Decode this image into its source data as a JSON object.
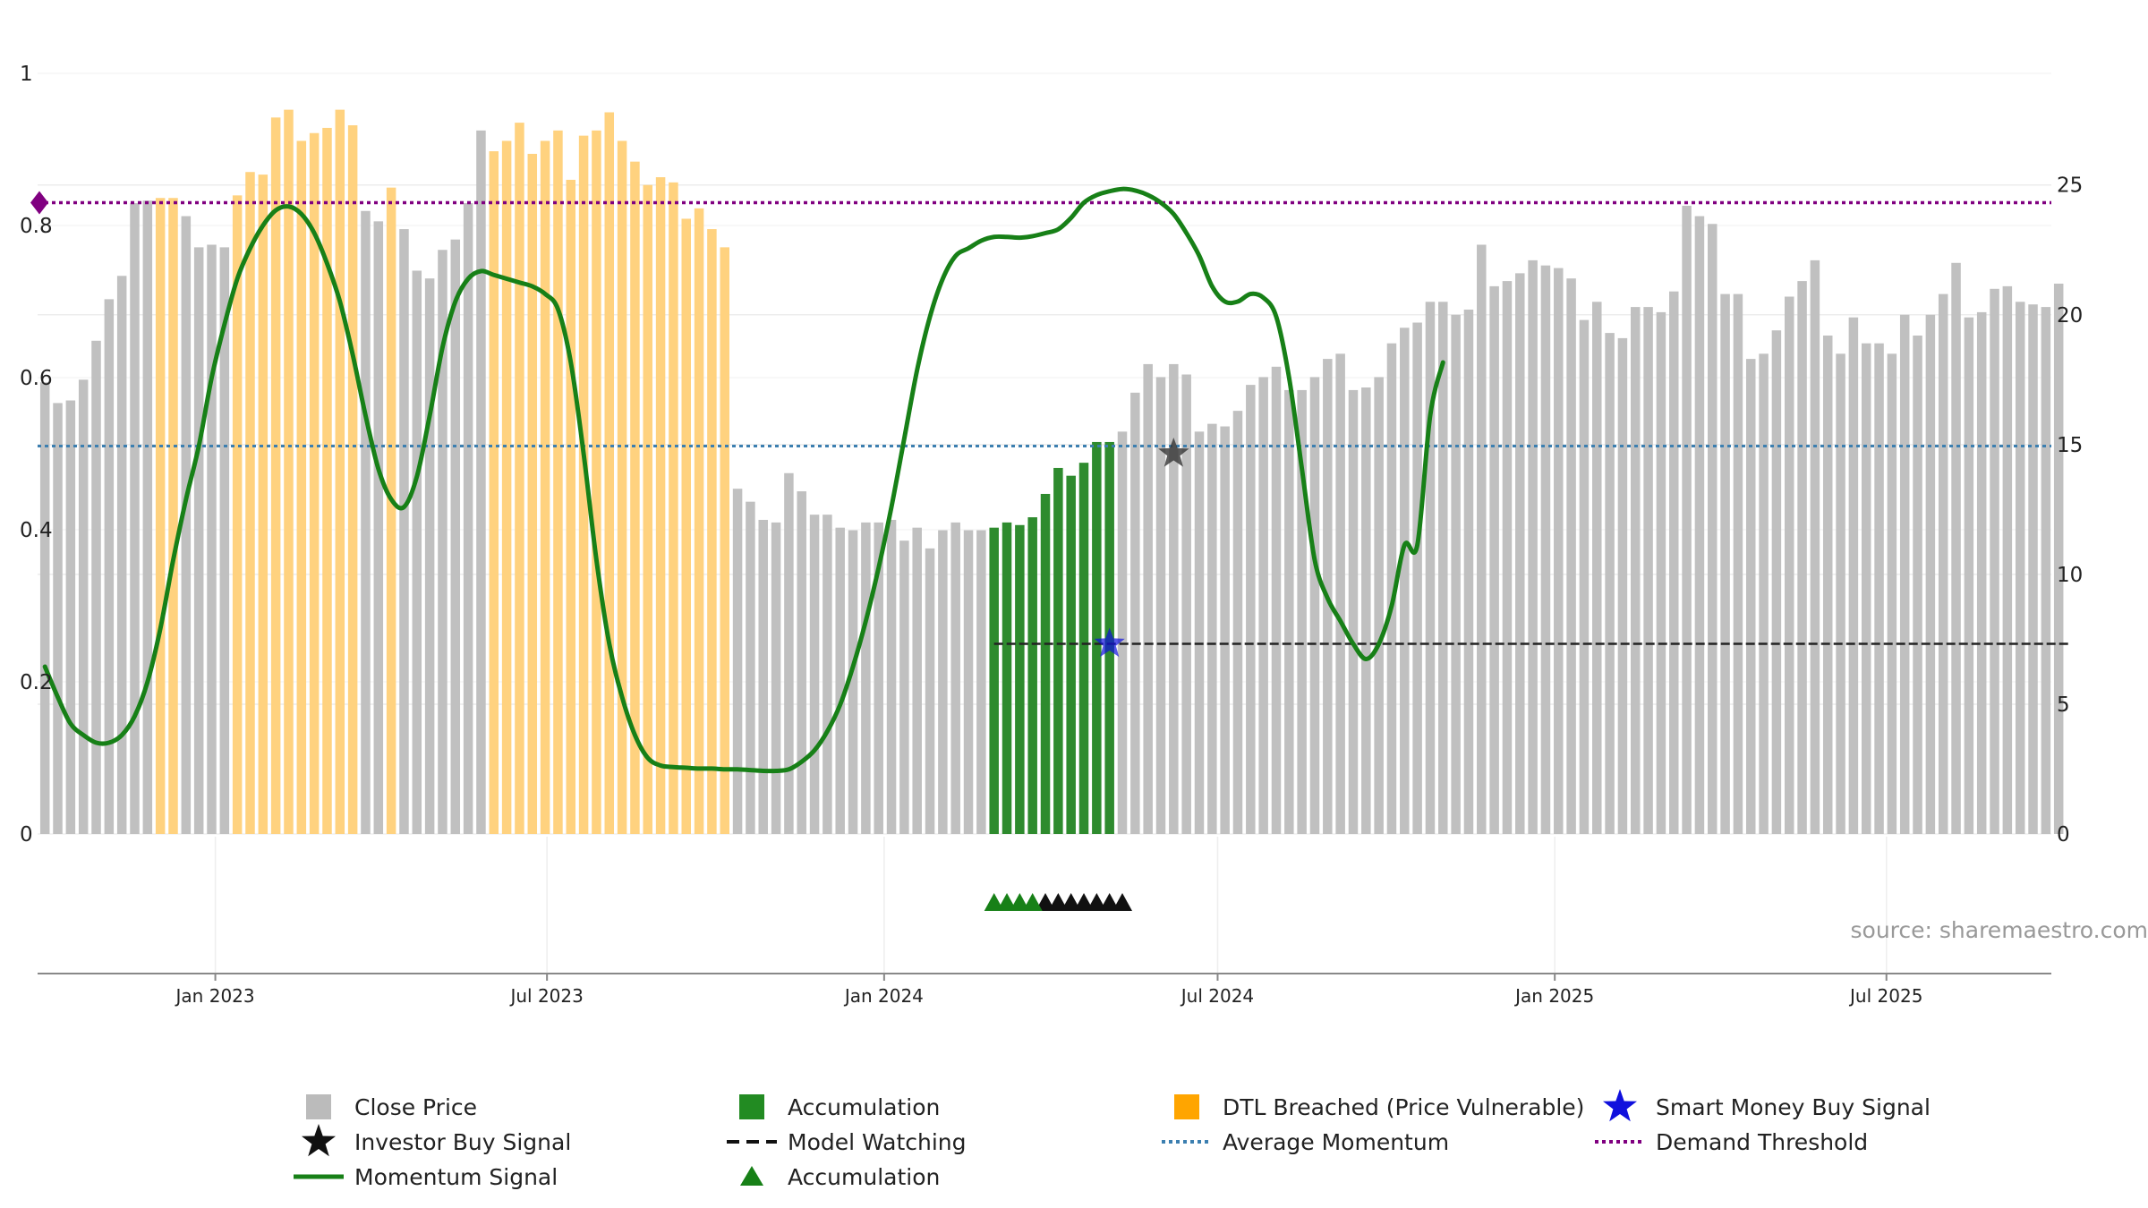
{
  "chart_data": {
    "type": "bar",
    "source": "source: sharemaestro.com",
    "left_axis": {
      "ylim": [
        0,
        1
      ],
      "ticks": [
        0,
        0.2,
        0.4,
        0.6,
        0.8,
        1
      ],
      "tick_labels": [
        "0",
        "0.2",
        "0.4",
        "0.6",
        "0.8",
        "1"
      ]
    },
    "right_axis": {
      "ylim": [
        0,
        29.3
      ],
      "ticks": [
        0,
        5,
        10,
        15,
        20,
        25
      ],
      "tick_labels": [
        "0",
        "5",
        "10",
        "15",
        "20",
        "25"
      ]
    },
    "x_axis": {
      "start": "2022-09-26",
      "end": "2025-09-29",
      "ticks": [
        "2023-01-01",
        "2023-07-01",
        "2024-01-01",
        "2024-07-01",
        "2025-01-01",
        "2025-07-01"
      ],
      "tick_labels": [
        "Jan 2023",
        "Jul 2023",
        "Jan 2024",
        "Jul 2024",
        "Jan 2025",
        "Jul 2025"
      ]
    },
    "close_price": {
      "start": "2022-09-30",
      "interval_days": 7,
      "values": [
        17.4,
        16.6,
        16.7,
        17.5,
        19.0,
        20.6,
        21.5,
        24.3,
        24.4,
        24.5,
        24.5,
        23.8,
        22.6,
        22.7,
        22.6,
        24.6,
        25.5,
        25.4,
        27.6,
        27.9,
        26.7,
        27.0,
        27.2,
        27.9,
        27.3,
        24.0,
        23.6,
        24.9,
        23.3,
        21.7,
        21.4,
        22.5,
        22.9,
        24.3,
        27.1,
        26.3,
        26.7,
        27.4,
        26.2,
        26.7,
        27.1,
        25.2,
        26.9,
        27.1,
        27.8,
        26.7,
        25.9,
        25.0,
        25.3,
        25.1,
        23.7,
        24.1,
        23.3,
        22.6,
        13.3,
        12.8,
        12.1,
        12.0,
        13.9,
        13.2,
        12.3,
        12.3,
        11.8,
        11.7,
        12.0,
        12.0,
        12.1,
        11.3,
        11.8,
        11.0,
        11.7,
        12.0,
        11.7,
        11.7,
        11.8,
        12.0,
        11.9,
        12.2,
        13.1,
        14.1,
        13.8,
        14.3,
        15.1,
        15.1,
        15.5,
        17.0,
        18.1,
        17.6,
        18.1,
        17.7,
        15.5,
        15.8,
        15.7,
        16.3,
        17.3,
        17.6,
        18.0,
        17.1,
        17.1,
        17.6,
        18.3,
        18.5,
        17.1,
        17.2,
        17.6,
        18.9,
        19.5,
        19.7,
        20.5,
        20.5,
        20.0,
        20.2,
        22.7,
        21.1,
        21.3,
        21.6,
        22.1,
        21.9,
        21.8,
        21.4,
        19.8,
        20.5,
        19.3,
        19.1,
        20.3,
        20.3,
        20.1,
        20.9,
        24.2,
        23.8,
        23.5,
        20.8,
        20.8,
        18.3,
        18.5,
        19.4,
        20.7,
        21.3,
        22.1,
        19.2,
        18.5,
        19.9,
        18.9,
        18.9,
        18.5,
        20.0,
        19.2,
        20.0,
        20.8,
        22.0,
        19.9,
        20.1,
        21.0,
        21.1,
        20.5,
        20.4,
        20.3,
        21.2
      ],
      "color": "#c0c0c0"
    },
    "dtl_breached_ranges": [
      [
        9,
        10
      ],
      [
        15,
        24
      ],
      [
        27,
        27
      ],
      [
        35,
        53
      ]
    ],
    "accumulation_range": [
      74,
      83
    ],
    "momentum_signal": {
      "start": "2022-09-30",
      "interval_days": 7,
      "values": [
        0.22,
        0.18,
        0.145,
        0.13,
        0.12,
        0.12,
        0.13,
        0.155,
        0.2,
        0.27,
        0.36,
        0.44,
        0.51,
        0.6,
        0.67,
        0.73,
        0.77,
        0.8,
        0.82,
        0.825,
        0.815,
        0.79,
        0.75,
        0.7,
        0.63,
        0.55,
        0.48,
        0.44,
        0.43,
        0.47,
        0.55,
        0.64,
        0.7,
        0.73,
        0.74,
        0.735,
        0.73,
        0.725,
        0.72,
        0.71,
        0.69,
        0.62,
        0.5,
        0.36,
        0.25,
        0.18,
        0.13,
        0.1,
        0.09,
        0.088,
        0.087,
        0.086,
        0.086,
        0.085,
        0.085,
        0.084,
        0.083,
        0.083,
        0.085,
        0.095,
        0.11,
        0.135,
        0.17,
        0.22,
        0.28,
        0.35,
        0.43,
        0.52,
        0.61,
        0.68,
        0.73,
        0.76,
        0.77,
        0.78,
        0.785,
        0.785,
        0.784,
        0.786,
        0.79,
        0.795,
        0.81,
        0.83,
        0.84,
        0.845,
        0.848,
        0.846,
        0.84,
        0.83,
        0.815,
        0.79,
        0.76,
        0.72,
        0.7,
        0.7,
        0.71,
        0.705,
        0.68,
        0.6,
        0.48,
        0.36,
        0.31,
        0.28,
        0.25,
        0.23,
        0.25,
        0.3,
        0.38,
        0.38,
        0.55,
        0.62
      ],
      "color": "#178017"
    },
    "average_momentum": {
      "value": 0.51,
      "color": "#3c7fb0"
    },
    "demand_threshold": {
      "value": 0.83,
      "color": "#800080"
    },
    "model_watching": {
      "value": 0.25,
      "start_index": 74,
      "end_index": 158,
      "color": "#222222"
    },
    "smart_money_buy_signal": {
      "index": 83,
      "value": 0.25,
      "color": "#1010dd"
    },
    "investor_buy_signal": {
      "index": 88,
      "value": 0.5,
      "color": "#333333"
    },
    "accumulation_triangles": {
      "green_indices": [
        74,
        75,
        76,
        77
      ],
      "black_indices": [
        78,
        79,
        80,
        81,
        82,
        83,
        84
      ],
      "colors": {
        "green": "#178017",
        "black": "#111111"
      }
    },
    "legend": [
      {
        "label": "Close Price",
        "marker": "square",
        "color": "#bbbbbb"
      },
      {
        "label": "Accumulation",
        "marker": "square",
        "color": "#228b22"
      },
      {
        "label": "DTL Breached (Price Vulnerable)",
        "marker": "square",
        "color": "#ffa500"
      },
      {
        "label": "Smart Money Buy Signal",
        "marker": "star",
        "color": "#1010dd"
      },
      {
        "label": "Investor Buy Signal",
        "marker": "star",
        "color": "#111111"
      },
      {
        "label": "Model Watching",
        "marker": "dashed-line",
        "color": "#111111"
      },
      {
        "label": "Average Momentum",
        "marker": "dotted-line",
        "color": "#3c7fb0"
      },
      {
        "label": "Demand Threshold",
        "marker": "dotted-line",
        "color": "#800080"
      },
      {
        "label": "Momentum Signal",
        "marker": "line",
        "color": "#178017"
      },
      {
        "label": "Accumulation",
        "marker": "triangle",
        "color": "#178017"
      }
    ]
  }
}
